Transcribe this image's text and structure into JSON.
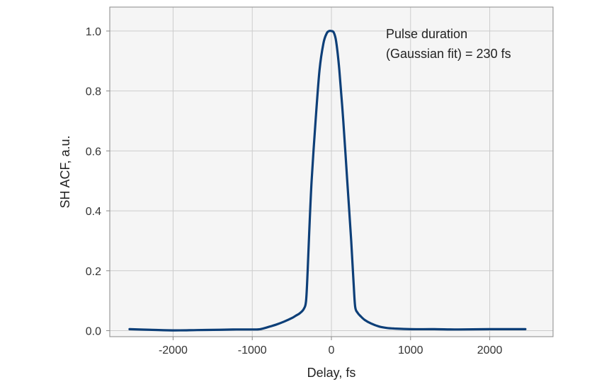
{
  "chart_data": {
    "type": "line",
    "title": "",
    "xlabel": "Delay, fs",
    "ylabel": "SH ACF, a.u.",
    "xlim": [
      -2800,
      2800
    ],
    "ylim": [
      -0.02,
      1.08
    ],
    "xticks": [
      -2000,
      -1000,
      0,
      1000,
      2000
    ],
    "xtick_labels": [
      "-2000",
      "-1000",
      "0",
      "1000",
      "2000"
    ],
    "yticks": [
      0.0,
      0.2,
      0.4,
      0.6,
      0.8,
      1.0
    ],
    "ytick_labels": [
      "0.0",
      "0.2",
      "0.4",
      "0.6",
      "0.8",
      "1.0"
    ],
    "grid": true,
    "legend": "none",
    "annotation": [
      "Pulse duration",
      "(Gaussian fit) = 230 fs"
    ],
    "annotation_position": "top-right",
    "colors": {
      "line": "#0d3f78",
      "plot_background": "#f5f5f5",
      "grid": "#cccccc",
      "frame": "#888888"
    },
    "series": [
      {
        "x": [
          -2550,
          -2300,
          -2000,
          -1700,
          -1400,
          -1200,
          -1000,
          -900,
          -800,
          -700,
          -600,
          -500,
          -450,
          -400,
          -350,
          -320,
          -300,
          -280,
          -250,
          -200,
          -150,
          -100,
          -60,
          -30,
          0,
          30,
          60,
          100,
          150,
          200,
          250,
          280,
          300,
          330,
          370,
          420,
          500,
          600,
          700,
          800,
          1000,
          1300,
          1600,
          2000,
          2450
        ],
        "y": [
          0.005,
          0.003,
          0.001,
          0.002,
          0.003,
          0.004,
          0.004,
          0.005,
          0.012,
          0.02,
          0.03,
          0.042,
          0.05,
          0.058,
          0.072,
          0.1,
          0.2,
          0.33,
          0.5,
          0.7,
          0.87,
          0.96,
          0.992,
          1.0,
          1.0,
          0.995,
          0.965,
          0.87,
          0.7,
          0.5,
          0.3,
          0.16,
          0.08,
          0.06,
          0.048,
          0.036,
          0.024,
          0.014,
          0.009,
          0.007,
          0.005,
          0.005,
          0.004,
          0.005,
          0.005
        ]
      }
    ]
  }
}
